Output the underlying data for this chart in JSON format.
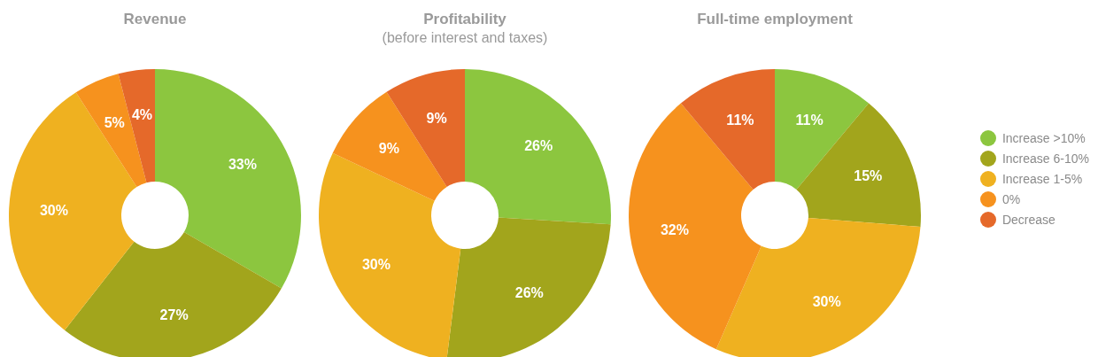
{
  "chart_data": [
    {
      "type": "donut",
      "title": "Revenue",
      "categories": [
        null,
        null,
        null,
        null,
        null
      ],
      "values": [
        33,
        27,
        30,
        5,
        4
      ],
      "value_labels": [
        "33%",
        "27%",
        "30%",
        "5%",
        "4%"
      ],
      "colors": [
        "#8cc63f",
        "#a2a51c",
        "#efb120",
        "#f6921e",
        "#e5692a"
      ],
      "legend": false
    },
    {
      "type": "donut",
      "title": "Profitability",
      "subtitle": "(before interest and taxes)",
      "categories": [
        null,
        null,
        null,
        null,
        null
      ],
      "values": [
        26,
        26,
        30,
        9,
        9
      ],
      "value_labels": [
        "26%",
        "26%",
        "30%",
        "9%",
        "9%"
      ],
      "colors": [
        "#8cc63f",
        "#a2a51c",
        "#efb120",
        "#f6921e",
        "#e5692a"
      ],
      "legend": false
    },
    {
      "type": "donut",
      "title": "Full-time employment",
      "categories": [
        "Increase >10%",
        "Increase 6-10%",
        "Increase 1-5%",
        "0%",
        "Decrease"
      ],
      "values": [
        11,
        15,
        30,
        32,
        11
      ],
      "value_labels": [
        "11%",
        "15%",
        "30%",
        "32%",
        "11%"
      ],
      "colors": [
        "#8cc63f",
        "#a2a51c",
        "#efb120",
        "#f6921e",
        "#e5692a"
      ],
      "legend": "right"
    }
  ]
}
